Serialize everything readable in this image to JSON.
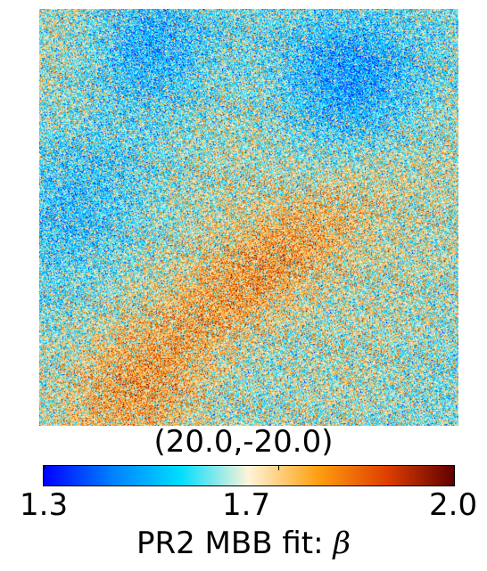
{
  "chart_data": {
    "type": "heatmap",
    "title": "(20.0,-20.0)",
    "colorbar": {
      "label_prefix": "PR2 MBB fit: ",
      "label_symbol": "β",
      "min": 1.3,
      "max": 2.0,
      "ticks": [
        "1.3",
        "1.7",
        "2.0"
      ],
      "tick_values": [
        1.3,
        1.7,
        2.0
      ],
      "colormap_stops": [
        "#0000ff",
        "#0080ff",
        "#00ddff",
        "#fff4d8",
        "#ffa010",
        "#e04000",
        "#600000"
      ]
    },
    "description_values": {
      "background_mean_beta": 1.62,
      "high_beta_band": "diagonal band from center toward lower-left, values near 1.85-2.0",
      "low_beta_regions": "upper-right and upper-left, values near 1.3-1.45"
    }
  }
}
